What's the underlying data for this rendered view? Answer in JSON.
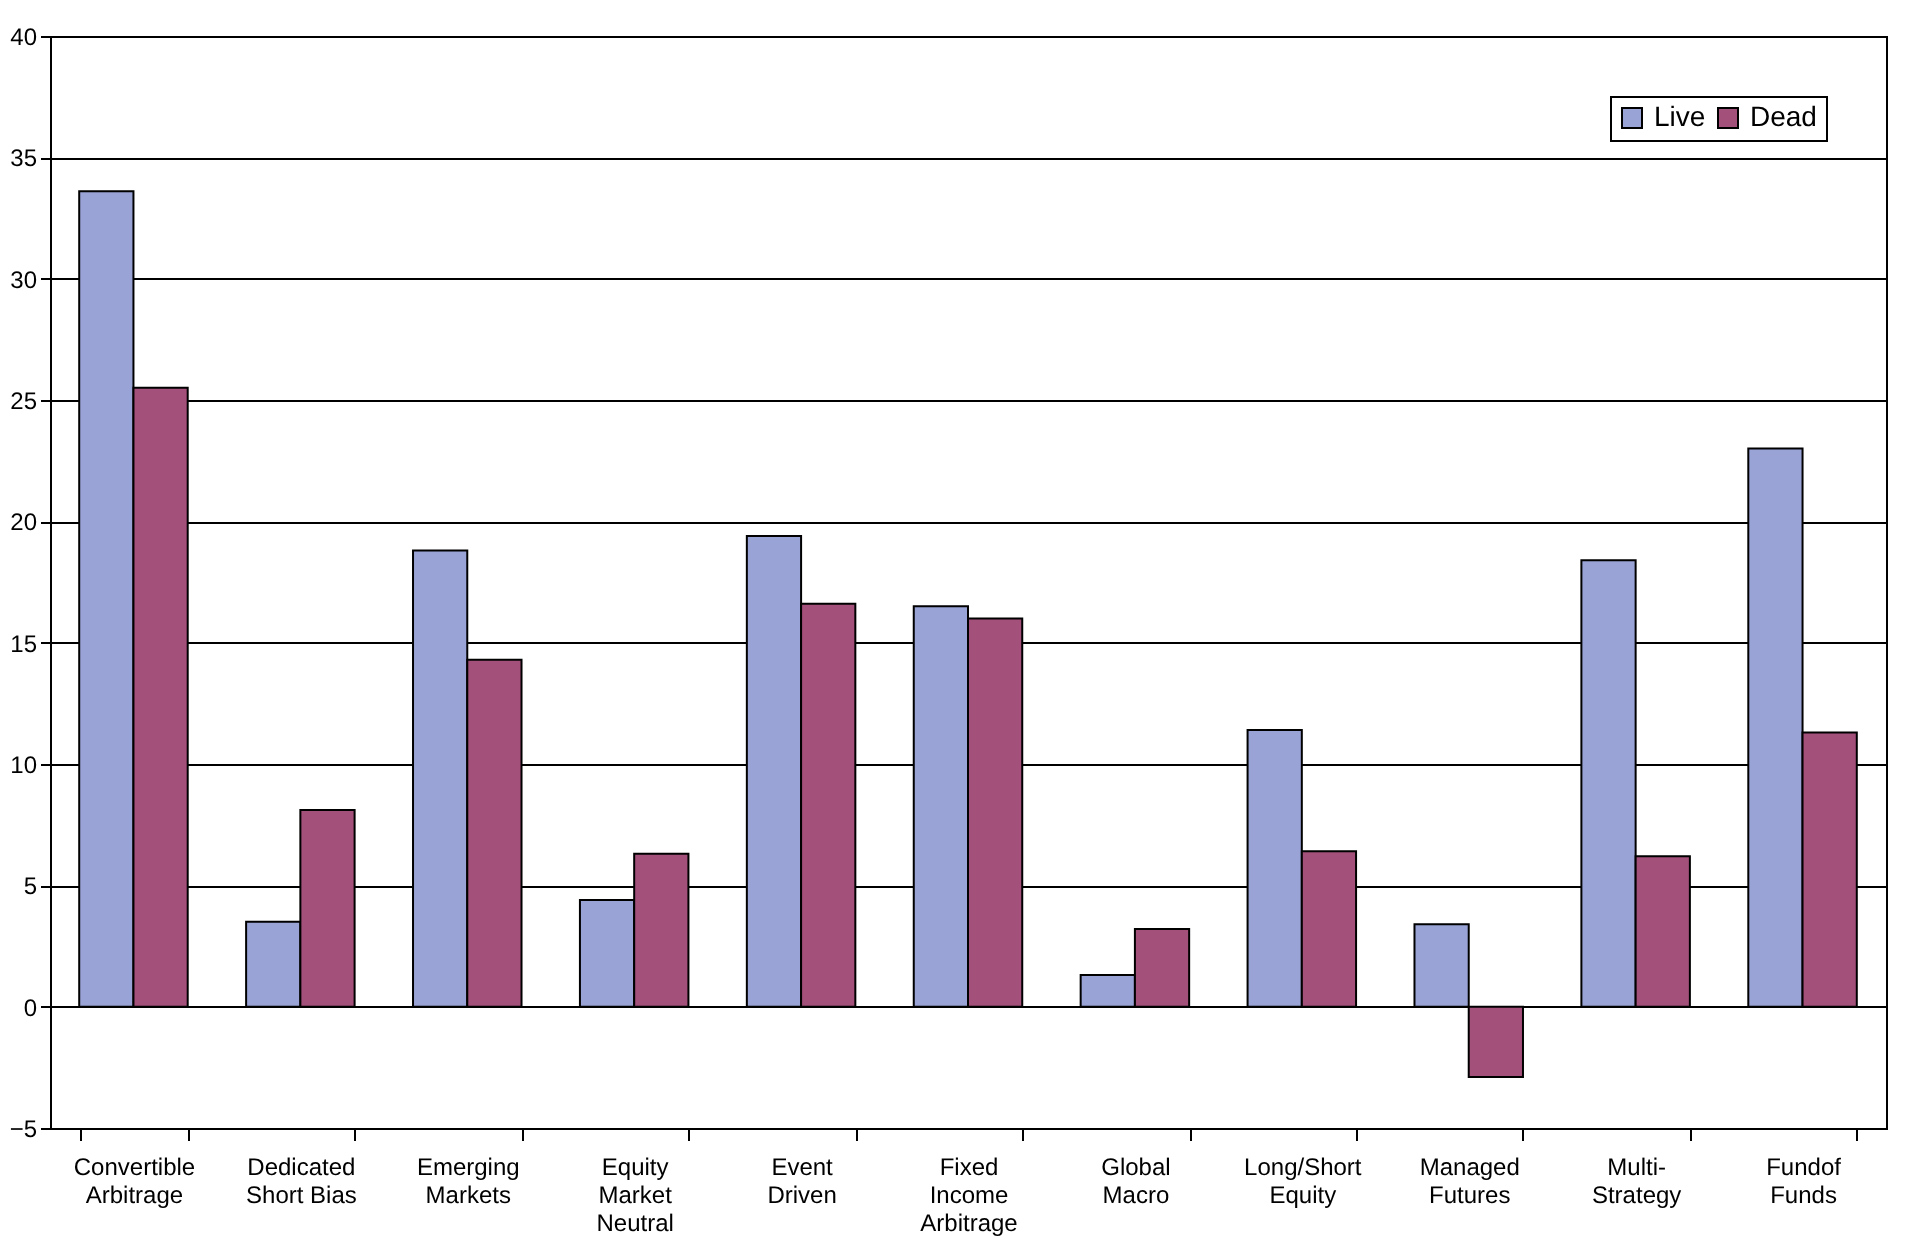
{
  "chart_data": {
    "type": "bar",
    "categories": [
      "Convertible\nArbitrage",
      "Dedicated\nShort Bias",
      "Emerging\nMarkets",
      "Equity\nMarket\nNeutral",
      "Event\nDriven",
      "Fixed\nIncome\nArbitrage",
      "Global\nMacro",
      "Long/Short\nEquity",
      "Managed\nFutures",
      "Multi-\nStrategy",
      "Fundof\nFunds"
    ],
    "series": [
      {
        "name": "Live",
        "color": "#9aa3d6",
        "values": [
          33.6,
          3.5,
          18.8,
          4.4,
          19.4,
          16.5,
          1.3,
          11.4,
          3.4,
          18.4,
          23.0
        ]
      },
      {
        "name": "Dead",
        "color": "#a3507a",
        "values": [
          25.5,
          8.1,
          14.3,
          6.3,
          16.6,
          16.0,
          3.2,
          6.4,
          -2.9,
          6.2,
          11.3
        ]
      }
    ],
    "ylim": [
      -5,
      40
    ],
    "yticks": [
      -5,
      0,
      5,
      10,
      15,
      20,
      25,
      30,
      35,
      40
    ],
    "grid": "y",
    "legend": "top right"
  }
}
